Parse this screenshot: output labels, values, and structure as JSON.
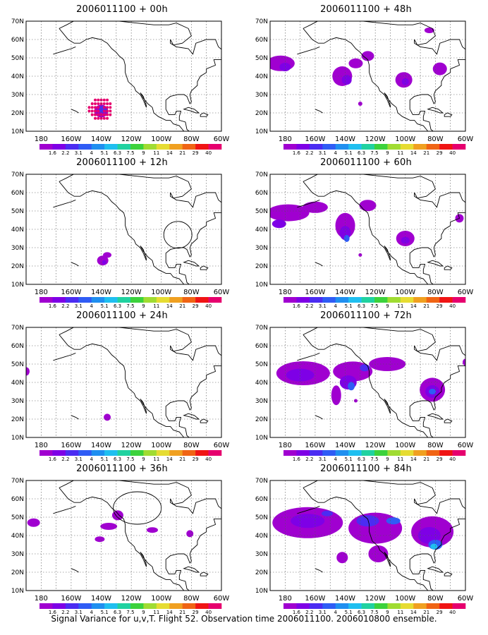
{
  "panels": [
    {
      "title": "2006011100 + 00h"
    },
    {
      "title": "2006011100 + 48h"
    },
    {
      "title": "2006011100 + 12h"
    },
    {
      "title": "2006011100 + 60h"
    },
    {
      "title": "2006011100 + 24h"
    },
    {
      "title": "2006011100 + 72h"
    },
    {
      "title": "2006011100 + 36h"
    },
    {
      "title": "2006011100 + 84h"
    }
  ],
  "map_axes": {
    "lat_labels": [
      "10N",
      "20N",
      "30N",
      "40N",
      "50N",
      "60N",
      "70N"
    ],
    "lon_labels": [
      "180",
      "160W",
      "140W",
      "120W",
      "100W",
      "80W",
      "60W"
    ],
    "lat_range": [
      10,
      70
    ],
    "lon_range": [
      -190,
      -60
    ]
  },
  "colorbar": {
    "labels": [
      "1.6",
      "2.2",
      "3.1",
      "4",
      "5.1",
      "6.3",
      "7.5",
      "9",
      "11",
      "14",
      "21",
      "29",
      "40"
    ],
    "colors": [
      "#a000d0",
      "#7e00e6",
      "#4b2cf2",
      "#2f5cf5",
      "#1f8ff0",
      "#1fbff0",
      "#20d2a0",
      "#3cd23c",
      "#a0dc32",
      "#e6dc32",
      "#f0a020",
      "#f06414",
      "#f01414",
      "#e6006e"
    ]
  },
  "fill_colors": {
    "level1": "#a000d0",
    "level2": "#7e00e6",
    "level3": "#4b2cf2",
    "level4": "#2f5cf5",
    "level5": "#1fbff0",
    "level6": "#20d2a0",
    "dots": "#e6006e"
  },
  "footer": "Signal Variance for u,v,T. Flight 52. Observation time 2006011100. 2006010800 ensemble."
}
